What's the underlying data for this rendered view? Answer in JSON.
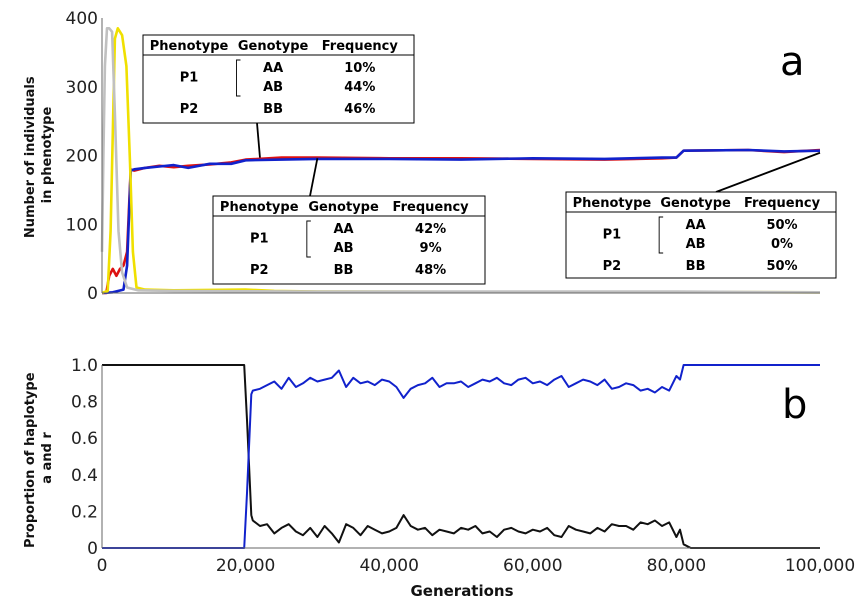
{
  "chart_data": [
    {
      "panel": "a",
      "type": "line",
      "ylabel_lines": [
        "Number of individuals",
        "in phenotype"
      ],
      "xlim": [
        0,
        100000
      ],
      "ylim": [
        0,
        400
      ],
      "yticks": [
        "0",
        "100",
        "200",
        "300",
        "400"
      ],
      "series": [
        {
          "color": "#dd1111",
          "x": [
            0,
            600,
            1000,
            1500,
            2000,
            2500,
            3000,
            3500,
            4000,
            4500,
            6000,
            8000,
            10000,
            12000,
            15000,
            18000,
            20000,
            25000,
            30000,
            40000,
            50000,
            60000,
            70000,
            78000,
            80000,
            81000,
            90000,
            95000,
            100000
          ],
          "y": [
            0,
            0,
            25,
            35,
            25,
            35,
            40,
            60,
            180,
            178,
            182,
            185,
            183,
            185,
            187,
            190,
            194,
            197,
            197,
            196,
            196,
            195,
            194,
            196,
            197,
            207,
            208,
            205,
            208
          ]
        },
        {
          "color": "#1122cc",
          "x": [
            0,
            1500,
            3000,
            3500,
            4000,
            4500,
            6000,
            8000,
            10000,
            12000,
            15000,
            18000,
            20000,
            25000,
            30000,
            40000,
            50000,
            60000,
            70000,
            78000,
            80000,
            81000,
            90000,
            95000,
            100000
          ],
          "y": [
            0,
            1,
            5,
            40,
            178,
            180,
            182,
            184,
            186,
            182,
            188,
            188,
            193,
            194,
            195,
            195,
            194,
            196,
            195,
            197,
            197,
            207,
            208,
            206,
            207
          ]
        },
        {
          "color": "#f0e000",
          "x": [
            0,
            800,
            1200,
            1800,
            2200,
            2800,
            3400,
            3900,
            4300,
            4800,
            6000,
            10000,
            20000,
            24000,
            30000,
            100000
          ],
          "y": [
            0,
            3,
            90,
            370,
            385,
            375,
            330,
            190,
            60,
            8,
            5,
            4,
            5,
            3,
            2,
            1
          ]
        },
        {
          "color": "#c0c0c0",
          "x": [
            0,
            200,
            400,
            700,
            1000,
            1400,
            1800,
            2300,
            2800,
            3500,
            5000,
            10000,
            30000,
            60000,
            80000,
            100000
          ],
          "y": [
            60,
            200,
            330,
            385,
            385,
            380,
            260,
            90,
            30,
            8,
            4,
            3,
            2,
            2,
            2,
            1
          ]
        }
      ],
      "tables": [
        {
          "header": [
            "Phenotype",
            "Genotype",
            "Frequency"
          ],
          "rows": [
            [
              "P1",
              "AA",
              "10%"
            ],
            [
              "",
              "AB",
              "44%"
            ],
            [
              "P2",
              "BB",
              "46%"
            ]
          ]
        },
        {
          "header": [
            "Phenotype",
            "Genotype",
            "Frequency"
          ],
          "rows": [
            [
              "P1",
              "AA",
              "42%"
            ],
            [
              "",
              "AB",
              "9%"
            ],
            [
              "P2",
              "BB",
              "48%"
            ]
          ]
        },
        {
          "header": [
            "Phenotype",
            "Genotype",
            "Frequency"
          ],
          "rows": [
            [
              "P1",
              "AA",
              "50%"
            ],
            [
              "",
              "AB",
              "0%"
            ],
            [
              "P2",
              "BB",
              "50%"
            ]
          ]
        }
      ],
      "callout_points": [
        [
          22000,
          197
        ],
        [
          30000,
          196
        ],
        [
          100000,
          204
        ]
      ]
    },
    {
      "panel": "b",
      "type": "line",
      "ylabel_lines": [
        "Proportion of haplotype",
        "a and r"
      ],
      "xlabel": "Generations",
      "xlim": [
        0,
        100000
      ],
      "ylim": [
        0,
        1
      ],
      "xticks": [
        "0",
        "20,000",
        "40,000",
        "60,000",
        "80,000",
        "100,000"
      ],
      "yticks": [
        "0",
        "0.2",
        "0.4",
        "0.6",
        "0.8",
        "1.0"
      ],
      "series": [
        {
          "color": "#111111",
          "x": [
            0,
            19800,
            20200,
            20800,
            21000,
            22000,
            23000,
            24000,
            25000,
            26000,
            27000,
            28000,
            29000,
            30000,
            31000,
            32000,
            33000,
            34000,
            35000,
            36000,
            37000,
            38000,
            39000,
            40000,
            41000,
            42000,
            43000,
            44000,
            45000,
            46000,
            47000,
            48000,
            49000,
            50000,
            51000,
            52000,
            53000,
            54000,
            55000,
            56000,
            57000,
            58000,
            59000,
            60000,
            61000,
            62000,
            63000,
            64000,
            65000,
            66000,
            67000,
            68000,
            69000,
            70000,
            71000,
            72000,
            73000,
            74000,
            75000,
            76000,
            77000,
            78000,
            79000,
            80000,
            80500,
            81000,
            82000,
            100000
          ],
          "y": [
            1,
            1,
            0.7,
            0.18,
            0.15,
            0.12,
            0.13,
            0.08,
            0.11,
            0.13,
            0.09,
            0.07,
            0.11,
            0.06,
            0.12,
            0.08,
            0.03,
            0.13,
            0.11,
            0.07,
            0.12,
            0.1,
            0.08,
            0.09,
            0.11,
            0.18,
            0.12,
            0.1,
            0.11,
            0.07,
            0.1,
            0.09,
            0.08,
            0.11,
            0.1,
            0.12,
            0.08,
            0.09,
            0.06,
            0.1,
            0.11,
            0.09,
            0.08,
            0.1,
            0.09,
            0.11,
            0.07,
            0.06,
            0.12,
            0.1,
            0.09,
            0.08,
            0.11,
            0.09,
            0.13,
            0.12,
            0.12,
            0.1,
            0.14,
            0.13,
            0.15,
            0.12,
            0.14,
            0.06,
            0.1,
            0.02,
            0,
            0
          ]
        },
        {
          "color": "#1122cc",
          "x": [
            0,
            19800,
            20200,
            20800,
            21000,
            22000,
            23000,
            24000,
            25000,
            26000,
            27000,
            28000,
            29000,
            30000,
            31000,
            32000,
            33000,
            34000,
            35000,
            36000,
            37000,
            38000,
            39000,
            40000,
            41000,
            42000,
            43000,
            44000,
            45000,
            46000,
            47000,
            48000,
            49000,
            50000,
            51000,
            52000,
            53000,
            54000,
            55000,
            56000,
            57000,
            58000,
            59000,
            60000,
            61000,
            62000,
            63000,
            64000,
            65000,
            66000,
            67000,
            68000,
            69000,
            70000,
            71000,
            72000,
            73000,
            74000,
            75000,
            76000,
            77000,
            78000,
            79000,
            80000,
            80500,
            81000,
            82000,
            100000
          ],
          "y": [
            0,
            0,
            0.3,
            0.84,
            0.86,
            0.87,
            0.89,
            0.91,
            0.87,
            0.93,
            0.88,
            0.9,
            0.93,
            0.91,
            0.92,
            0.93,
            0.97,
            0.88,
            0.93,
            0.9,
            0.91,
            0.89,
            0.92,
            0.91,
            0.88,
            0.82,
            0.87,
            0.89,
            0.9,
            0.93,
            0.88,
            0.9,
            0.9,
            0.91,
            0.88,
            0.9,
            0.92,
            0.91,
            0.93,
            0.9,
            0.89,
            0.92,
            0.93,
            0.9,
            0.91,
            0.89,
            0.92,
            0.94,
            0.88,
            0.9,
            0.92,
            0.91,
            0.89,
            0.92,
            0.87,
            0.88,
            0.9,
            0.89,
            0.86,
            0.87,
            0.85,
            0.88,
            0.86,
            0.94,
            0.92,
            1.0,
            1.0,
            1.0
          ]
        }
      ]
    }
  ]
}
